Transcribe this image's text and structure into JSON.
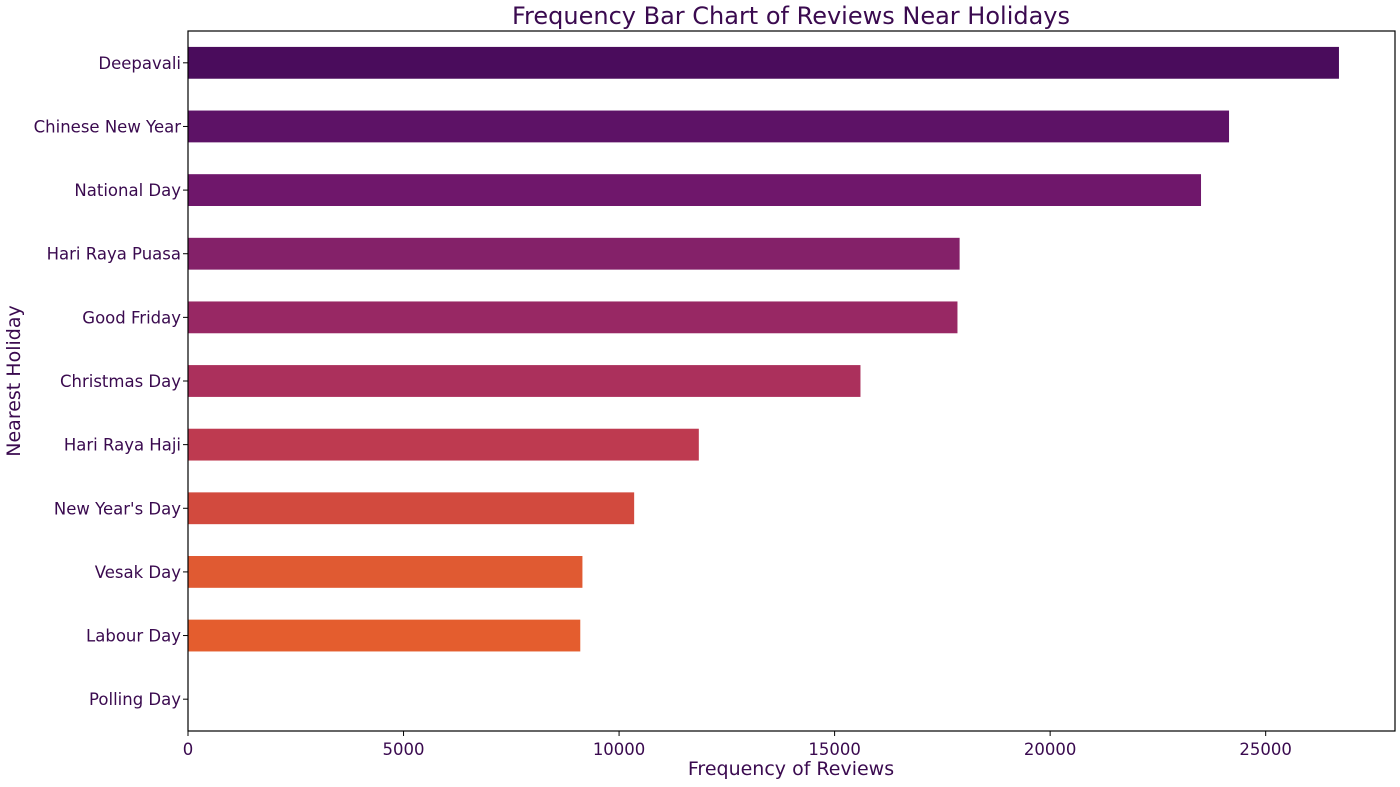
{
  "chart_data": {
    "type": "bar",
    "orientation": "horizontal",
    "title": "Frequency Bar Chart of Reviews Near Holidays",
    "xlabel": "Frequency of Reviews",
    "ylabel": "Nearest Holiday",
    "categories": [
      "Deepavali",
      "Chinese New Year",
      "National Day",
      "Hari Raya Puasa",
      "Good Friday",
      "Christmas Day",
      "Hari Raya Haji",
      "New Year's Day",
      "Vesak Day",
      "Labour Day",
      "Polling Day"
    ],
    "values": [
      26700,
      24150,
      23500,
      17900,
      17850,
      15600,
      11850,
      10350,
      9150,
      9100,
      0
    ],
    "bar_colors": [
      "#4a0c5c",
      "#5d1266",
      "#6f176b",
      "#842169",
      "#982864",
      "#ab305c",
      "#be3a50",
      "#d24a3e",
      "#e05a32",
      "#e45d2e",
      "#e8612b"
    ],
    "xticks": [
      "0",
      "5000",
      "10000",
      "15000",
      "20000",
      "25000"
    ],
    "xtick_values": [
      0,
      5000,
      10000,
      15000,
      20000,
      25000
    ],
    "xlim": [
      0,
      28000
    ],
    "grid": false,
    "legend": "none",
    "text_color": "#3a0a4f"
  }
}
